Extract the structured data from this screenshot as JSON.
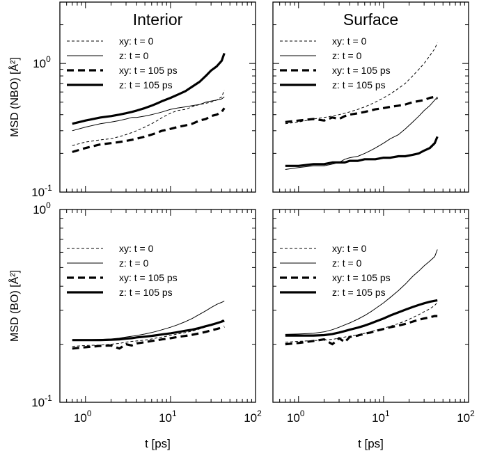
{
  "chart_data": [
    {
      "type": "line",
      "title": "Interior",
      "xlabel": "",
      "ylabel": "MSD (NBO) [Å²]",
      "xscale": "log",
      "yscale": "log",
      "xlim": [
        0.5,
        100
      ],
      "ylim": [
        0.1,
        3
      ],
      "legend": "top-left",
      "series": [
        {
          "name": "xy: t = 0",
          "x": [
            0.7,
            1,
            1.5,
            2,
            2.5,
            3,
            3.5,
            4,
            5,
            6,
            7,
            8,
            10,
            12,
            15,
            18,
            22,
            26,
            30,
            35,
            40,
            43
          ],
          "y": [
            0.23,
            0.245,
            0.255,
            0.26,
            0.27,
            0.28,
            0.29,
            0.3,
            0.32,
            0.34,
            0.36,
            0.38,
            0.41,
            0.43,
            0.44,
            0.46,
            0.48,
            0.49,
            0.5,
            0.52,
            0.55,
            0.62
          ]
        },
        {
          "name": "z: t = 0",
          "x": [
            0.7,
            1,
            1.5,
            2,
            2.5,
            3,
            3.5,
            4,
            5,
            6,
            7,
            8,
            10,
            12,
            15,
            18,
            22,
            26,
            30,
            35,
            40,
            43
          ],
          "y": [
            0.3,
            0.32,
            0.34,
            0.35,
            0.36,
            0.37,
            0.38,
            0.38,
            0.39,
            0.4,
            0.41,
            0.42,
            0.44,
            0.45,
            0.46,
            0.47,
            0.48,
            0.5,
            0.51,
            0.52,
            0.53,
            0.55
          ]
        },
        {
          "name": "xy: t = 105 ps",
          "x": [
            0.7,
            1,
            1.5,
            2,
            2.5,
            3,
            3.5,
            4,
            5,
            6,
            7,
            8,
            10,
            12,
            15,
            18,
            22,
            26,
            30,
            35,
            40,
            43
          ],
          "y": [
            0.205,
            0.22,
            0.235,
            0.24,
            0.245,
            0.25,
            0.255,
            0.26,
            0.27,
            0.28,
            0.29,
            0.3,
            0.31,
            0.32,
            0.33,
            0.34,
            0.36,
            0.37,
            0.39,
            0.4,
            0.42,
            0.45
          ]
        },
        {
          "name": "z: t = 105 ps",
          "x": [
            0.7,
            1,
            1.5,
            2,
            2.5,
            3,
            3.5,
            4,
            5,
            6,
            7,
            8,
            10,
            12,
            15,
            18,
            22,
            26,
            30,
            35,
            40,
            43
          ],
          "y": [
            0.34,
            0.36,
            0.38,
            0.39,
            0.4,
            0.41,
            0.42,
            0.43,
            0.45,
            0.47,
            0.49,
            0.51,
            0.54,
            0.57,
            0.61,
            0.66,
            0.72,
            0.8,
            0.88,
            0.95,
            1.05,
            1.2
          ]
        }
      ]
    },
    {
      "type": "line",
      "title": "Surface",
      "xlabel": "",
      "ylabel": "",
      "xscale": "log",
      "yscale": "log",
      "xlim": [
        0.5,
        100
      ],
      "ylim": [
        0.1,
        3
      ],
      "legend": "top-left",
      "series": [
        {
          "name": "xy: t = 0",
          "x": [
            0.7,
            1,
            1.5,
            2,
            2.5,
            3,
            3.5,
            4,
            5,
            6,
            7,
            8,
            10,
            12,
            15,
            18,
            22,
            26,
            30,
            35,
            40,
            43
          ],
          "y": [
            0.34,
            0.35,
            0.37,
            0.38,
            0.39,
            0.4,
            0.41,
            0.42,
            0.44,
            0.46,
            0.48,
            0.5,
            0.54,
            0.58,
            0.64,
            0.7,
            0.8,
            0.9,
            1.0,
            1.15,
            1.3,
            1.45
          ]
        },
        {
          "name": "z: t = 0",
          "x": [
            0.7,
            1,
            1.5,
            2,
            2.5,
            3,
            3.5,
            4,
            5,
            6,
            7,
            8,
            10,
            12,
            15,
            18,
            22,
            26,
            30,
            35,
            40,
            43
          ],
          "y": [
            0.15,
            0.155,
            0.16,
            0.16,
            0.165,
            0.17,
            0.18,
            0.185,
            0.19,
            0.2,
            0.21,
            0.22,
            0.24,
            0.26,
            0.28,
            0.31,
            0.35,
            0.39,
            0.43,
            0.47,
            0.52,
            0.55
          ]
        },
        {
          "name": "xy: t = 105 ps",
          "x": [
            0.7,
            1,
            1.5,
            2,
            2.5,
            3,
            3.5,
            4,
            5,
            6,
            7,
            8,
            10,
            12,
            15,
            18,
            22,
            26,
            30,
            35,
            40,
            43
          ],
          "y": [
            0.35,
            0.36,
            0.37,
            0.36,
            0.38,
            0.37,
            0.39,
            0.4,
            0.41,
            0.42,
            0.43,
            0.44,
            0.45,
            0.46,
            0.47,
            0.48,
            0.5,
            0.51,
            0.52,
            0.54,
            0.55,
            0.53
          ]
        },
        {
          "name": "z: t = 105 ps",
          "x": [
            0.7,
            1,
            1.5,
            2,
            2.5,
            3,
            3.5,
            4,
            5,
            6,
            7,
            8,
            10,
            12,
            15,
            18,
            22,
            26,
            30,
            35,
            40,
            43
          ],
          "y": [
            0.16,
            0.16,
            0.165,
            0.165,
            0.17,
            0.17,
            0.17,
            0.175,
            0.175,
            0.18,
            0.18,
            0.18,
            0.185,
            0.185,
            0.19,
            0.19,
            0.195,
            0.2,
            0.21,
            0.22,
            0.24,
            0.27
          ]
        }
      ]
    },
    {
      "type": "line",
      "title": "",
      "xlabel": "t [ps]",
      "ylabel": "MSD (BO) [Å²]",
      "xscale": "log",
      "yscale": "log",
      "xlim": [
        0.5,
        100
      ],
      "ylim": [
        0.1,
        1
      ],
      "legend": "top-left",
      "series": [
        {
          "name": "xy: t = 0",
          "x": [
            0.7,
            1,
            1.5,
            2,
            2.5,
            3,
            3.5,
            4,
            5,
            6,
            7,
            8,
            10,
            12,
            15,
            18,
            22,
            26,
            30,
            35,
            40,
            43
          ],
          "y": [
            0.195,
            0.197,
            0.198,
            0.2,
            0.202,
            0.205,
            0.207,
            0.208,
            0.21,
            0.213,
            0.216,
            0.218,
            0.222,
            0.226,
            0.23,
            0.234,
            0.24,
            0.246,
            0.252,
            0.258,
            0.265,
            0.27
          ]
        },
        {
          "name": "z: t = 0",
          "x": [
            0.7,
            1,
            1.5,
            2,
            2.5,
            3,
            3.5,
            4,
            5,
            6,
            7,
            8,
            10,
            12,
            15,
            18,
            22,
            26,
            30,
            35,
            40,
            43
          ],
          "y": [
            0.21,
            0.211,
            0.212,
            0.213,
            0.215,
            0.218,
            0.22,
            0.222,
            0.226,
            0.23,
            0.234,
            0.238,
            0.245,
            0.252,
            0.262,
            0.272,
            0.286,
            0.298,
            0.31,
            0.322,
            0.33,
            0.335
          ]
        },
        {
          "name": "xy: t = 105 ps",
          "x": [
            0.7,
            1,
            1.5,
            2,
            2.5,
            3,
            3.5,
            4,
            5,
            6,
            7,
            8,
            10,
            12,
            15,
            18,
            22,
            26,
            30,
            35,
            40,
            43
          ],
          "y": [
            0.19,
            0.193,
            0.196,
            0.197,
            0.19,
            0.2,
            0.197,
            0.202,
            0.205,
            0.208,
            0.21,
            0.212,
            0.215,
            0.218,
            0.221,
            0.224,
            0.228,
            0.232,
            0.236,
            0.24,
            0.244,
            0.247
          ]
        },
        {
          "name": "z: t = 105 ps",
          "x": [
            0.7,
            1,
            1.5,
            2,
            2.5,
            3,
            3.5,
            4,
            5,
            6,
            7,
            8,
            10,
            12,
            15,
            18,
            22,
            26,
            30,
            35,
            40,
            43
          ],
          "y": [
            0.21,
            0.21,
            0.21,
            0.211,
            0.212,
            0.214,
            0.215,
            0.217,
            0.219,
            0.221,
            0.223,
            0.225,
            0.228,
            0.231,
            0.235,
            0.238,
            0.243,
            0.248,
            0.252,
            0.257,
            0.262,
            0.265
          ]
        }
      ]
    },
    {
      "type": "line",
      "title": "",
      "xlabel": "t [ps]",
      "ylabel": "",
      "xscale": "log",
      "yscale": "log",
      "xlim": [
        0.5,
        100
      ],
      "ylim": [
        0.1,
        1
      ],
      "legend": "top-left",
      "series": [
        {
          "name": "xy: t = 0",
          "x": [
            0.7,
            1,
            1.5,
            2,
            2.5,
            3,
            3.5,
            4,
            5,
            6,
            7,
            8,
            10,
            12,
            15,
            18,
            22,
            26,
            30,
            35,
            40,
            43
          ],
          "y": [
            0.205,
            0.207,
            0.209,
            0.21,
            0.212,
            0.215,
            0.218,
            0.22,
            0.224,
            0.228,
            0.232,
            0.236,
            0.242,
            0.248,
            0.256,
            0.264,
            0.275,
            0.285,
            0.295,
            0.305,
            0.318,
            0.33
          ]
        },
        {
          "name": "z: t = 0",
          "x": [
            0.7,
            1,
            1.5,
            2,
            2.5,
            3,
            3.5,
            4,
            5,
            6,
            7,
            8,
            10,
            12,
            15,
            18,
            22,
            26,
            30,
            35,
            40,
            43
          ],
          "y": [
            0.225,
            0.226,
            0.228,
            0.232,
            0.238,
            0.245,
            0.252,
            0.258,
            0.27,
            0.282,
            0.294,
            0.306,
            0.328,
            0.35,
            0.38,
            0.41,
            0.45,
            0.48,
            0.51,
            0.54,
            0.57,
            0.62
          ]
        },
        {
          "name": "xy: t = 105 ps",
          "x": [
            0.7,
            1,
            1.5,
            2,
            2.5,
            3,
            3.5,
            4,
            5,
            6,
            7,
            8,
            10,
            12,
            15,
            18,
            22,
            26,
            30,
            35,
            40,
            43
          ],
          "y": [
            0.2,
            0.203,
            0.208,
            0.212,
            0.2,
            0.215,
            0.205,
            0.218,
            0.222,
            0.227,
            0.23,
            0.234,
            0.24,
            0.245,
            0.25,
            0.255,
            0.262,
            0.268,
            0.272,
            0.276,
            0.28,
            0.28
          ]
        },
        {
          "name": "z: t = 105 ps",
          "x": [
            0.7,
            1,
            1.5,
            2,
            2.5,
            3,
            3.5,
            4,
            5,
            6,
            7,
            8,
            10,
            12,
            15,
            18,
            22,
            26,
            30,
            35,
            40,
            43
          ],
          "y": [
            0.222,
            0.222,
            0.222,
            0.223,
            0.226,
            0.23,
            0.234,
            0.238,
            0.244,
            0.25,
            0.256,
            0.262,
            0.272,
            0.282,
            0.293,
            0.302,
            0.312,
            0.32,
            0.326,
            0.332,
            0.336,
            0.338
          ]
        }
      ]
    }
  ]
}
